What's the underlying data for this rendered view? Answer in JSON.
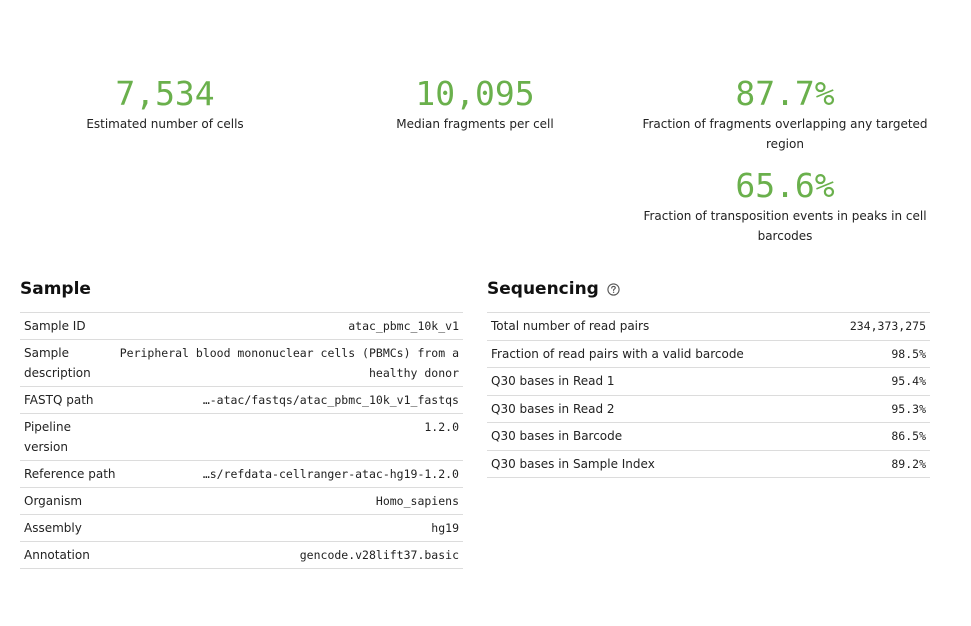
{
  "metrics": {
    "cells": {
      "value": "7,534",
      "label": "Estimated number of cells"
    },
    "fragments": {
      "value": "10,095",
      "label": "Median fragments per cell"
    },
    "targeted": {
      "value": "87.7%",
      "label_line1": "Fraction of fragments overlapping any targeted",
      "label_line2": "region"
    },
    "transposition": {
      "value": "65.6%",
      "label_line1": "Fraction of transposition events in peaks in cell",
      "label_line2": "barcodes"
    }
  },
  "colors": {
    "metric_green": "#6ab04c",
    "divider": "#dcdcdc"
  },
  "sample": {
    "title": "Sample",
    "rows": [
      {
        "label": "Sample ID",
        "value": "atac_pbmc_10k_v1"
      },
      {
        "label_line1": "Sample",
        "label_line2": "description",
        "value_line1": "Peripheral blood mononuclear cells (PBMCs) from a",
        "value_line2": "healthy donor"
      },
      {
        "label": "FASTQ path",
        "value": "…-atac/fastqs/atac_pbmc_10k_v1_fastqs"
      },
      {
        "label_line1": "Pipeline",
        "label_line2": "version",
        "value": "1.2.0"
      },
      {
        "label": "Reference path",
        "value": "…s/refdata-cellranger-atac-hg19-1.2.0"
      },
      {
        "label": "Organism",
        "value": "Homo_sapiens"
      },
      {
        "label": "Assembly",
        "value": "hg19"
      },
      {
        "label": "Annotation",
        "value": "gencode.v28lift37.basic"
      }
    ]
  },
  "sequencing": {
    "title": "Sequencing",
    "help_icon": "question-circle-icon",
    "rows": [
      {
        "label": "Total number of read pairs",
        "value": "234,373,275"
      },
      {
        "label": "Fraction of read pairs with a valid barcode",
        "value": "98.5%"
      },
      {
        "label": "Q30 bases in Read 1",
        "value": "95.4%"
      },
      {
        "label": "Q30 bases in Read 2",
        "value": "95.3%"
      },
      {
        "label": "Q30 bases in Barcode",
        "value": "86.5%"
      },
      {
        "label": "Q30 bases in Sample Index",
        "value": "89.2%"
      }
    ]
  }
}
